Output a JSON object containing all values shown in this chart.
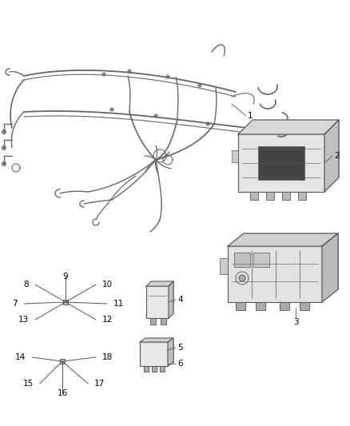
{
  "bg_color": "#ffffff",
  "line_color": "#555555",
  "label_color": "#000000",
  "label_fontsize": 7.5,
  "figsize": [
    4.38,
    5.33
  ],
  "dpi": 100,
  "harness_color": "#666666",
  "box_face": "#e8e8e8",
  "box_dark": "#b0b0b0",
  "box_mid": "#cccccc"
}
